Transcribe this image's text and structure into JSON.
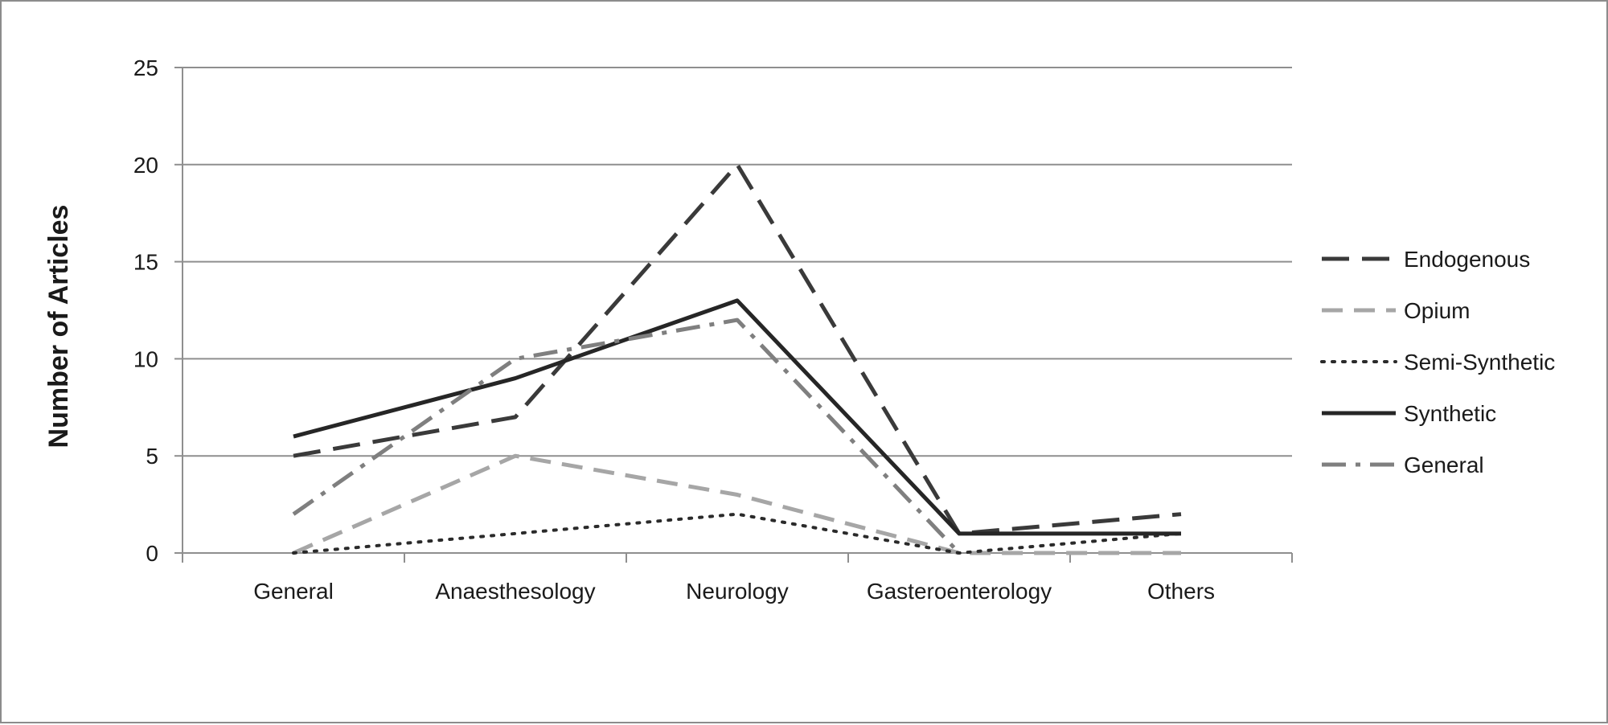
{
  "chart_data": {
    "type": "line",
    "title": "",
    "xlabel": "",
    "ylabel": "Number of Articles",
    "categories": [
      "General",
      "Anaesthesology",
      "Neurology",
      "Gasteroenterology",
      "Others"
    ],
    "ylim": [
      0,
      25
    ],
    "yticks": [
      0,
      5,
      10,
      15,
      20,
      25
    ],
    "grid": true,
    "legend_position": "right",
    "series": [
      {
        "name": "Endogenous",
        "values": [
          5,
          7,
          20,
          1,
          2
        ],
        "color": "#3a3a3a",
        "style": "long-dash"
      },
      {
        "name": "Opium",
        "values": [
          0,
          5,
          3,
          0,
          0
        ],
        "color": "#a6a6a6",
        "style": "dash"
      },
      {
        "name": "Semi-Synthetic",
        "values": [
          0,
          1,
          2,
          0,
          1
        ],
        "color": "#2a2a2a",
        "style": "dot"
      },
      {
        "name": "Synthetic",
        "values": [
          6,
          9,
          13,
          1,
          1
        ],
        "color": "#262626",
        "style": "solid"
      },
      {
        "name": "General",
        "values": [
          2,
          10,
          12,
          0,
          null
        ],
        "color": "#7f7f7f",
        "style": "dash-dot"
      }
    ]
  }
}
